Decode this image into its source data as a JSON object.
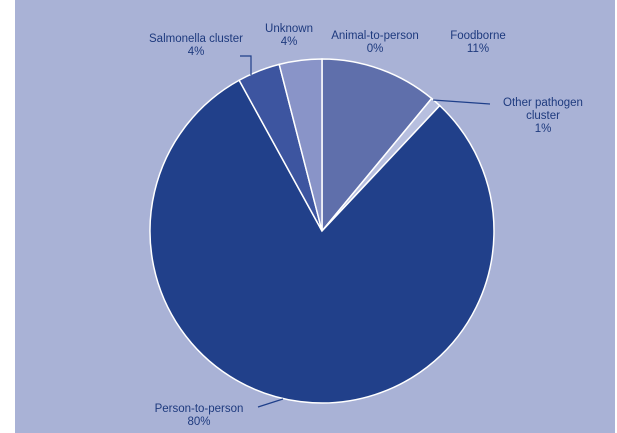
{
  "chart_data": {
    "type": "pie",
    "title": "",
    "start_angle_deg": 0,
    "direction": "clockwise",
    "slices": [
      {
        "name": "Animal-to-person",
        "value": 0,
        "percent_label": "0%",
        "color": "#6a78b3"
      },
      {
        "name": "Foodborne",
        "value": 11,
        "percent_label": "11%",
        "color": "#5f6fab"
      },
      {
        "name": "Other pathogen cluster",
        "value": 1,
        "percent_label": "1%",
        "color": "#b7bfdf"
      },
      {
        "name": "Person-to-person",
        "value": 80,
        "percent_label": "80%",
        "color": "#21408a"
      },
      {
        "name": "Salmonella cluster",
        "value": 4,
        "percent_label": "4%",
        "color": "#3d55a0"
      },
      {
        "name": "Unknown",
        "value": 4,
        "percent_label": "4%",
        "color": "#8994c8"
      }
    ],
    "labels": [
      {
        "lines": [
          "Animal-to-person",
          "0%"
        ]
      },
      {
        "lines": [
          "Foodborne",
          "11%"
        ]
      },
      {
        "lines": [
          "Other pathogen",
          "cluster",
          "1%"
        ]
      },
      {
        "lines": [
          "Person-to-person",
          "80%"
        ]
      },
      {
        "lines": [
          "Salmonella cluster",
          "4%"
        ]
      },
      {
        "lines": [
          "Unknown",
          "4%"
        ]
      }
    ]
  }
}
